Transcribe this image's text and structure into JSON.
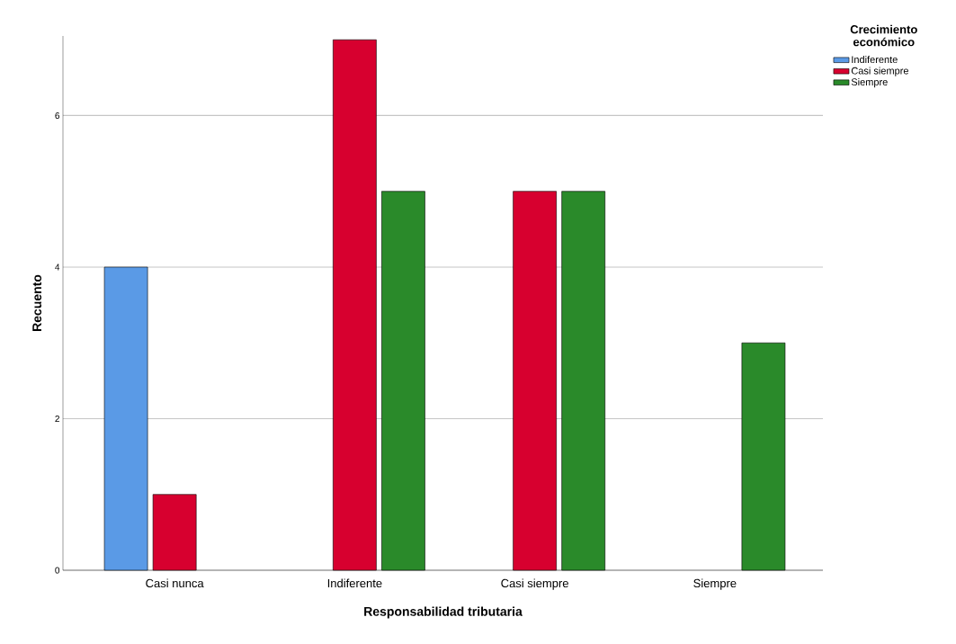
{
  "chart_data": {
    "type": "bar",
    "xlabel": "Responsabilidad tributaria",
    "ylabel": "Recuento",
    "legend_title": "Crecimiento económico",
    "categories": [
      "Casi nunca",
      "Indiferente",
      "Casi siempre",
      "Siempre"
    ],
    "series": [
      {
        "name": "Indiferente",
        "color": "#5a9ae6",
        "values": [
          4,
          null,
          null,
          null
        ]
      },
      {
        "name": "Casi siempre",
        "color": "#d7002f",
        "values": [
          1,
          7,
          5,
          null
        ]
      },
      {
        "name": "Siempre",
        "color": "#2a8a2a",
        "values": [
          null,
          5,
          5,
          3
        ]
      }
    ],
    "ylim": [
      0,
      7.05
    ],
    "yticks": [
      0,
      2,
      4,
      6
    ],
    "grid": "y",
    "legend": "top right"
  }
}
